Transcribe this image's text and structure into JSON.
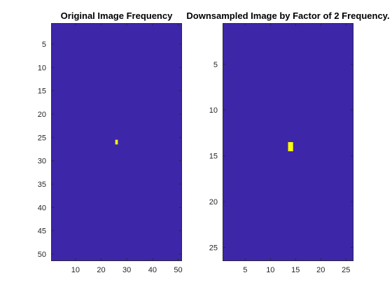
{
  "chart_data": [
    {
      "type": "heatmap",
      "title": "Original Image Frequency",
      "xlabel": "",
      "ylabel": "",
      "xlim": [
        0.5,
        51.5
      ],
      "ylim": [
        0.5,
        51.5
      ],
      "y_reversed": true,
      "xticks": [
        10,
        20,
        30,
        40,
        50
      ],
      "yticks": [
        5,
        10,
        15,
        20,
        25,
        30,
        35,
        40,
        45,
        50
      ],
      "background_value": 0,
      "background_color": "#3e26a8",
      "highlight_color": "#f9fb0e",
      "cells": [
        {
          "x": 26,
          "y": 26,
          "value": 1
        }
      ]
    },
    {
      "type": "heatmap",
      "title": "Downsampled Image by Factor of 2 Frequency.",
      "xlabel": "",
      "ylabel": "",
      "xlim": [
        0.5,
        26.5
      ],
      "ylim": [
        0.5,
        26.5
      ],
      "y_reversed": true,
      "xticks": [
        5,
        10,
        15,
        20,
        25
      ],
      "yticks": [
        5,
        10,
        15,
        20,
        25
      ],
      "background_value": 0,
      "background_color": "#3e26a8",
      "highlight_color": "#f9fb0e",
      "cells": [
        {
          "x": 14,
          "y": 14,
          "value": 1
        }
      ]
    }
  ]
}
